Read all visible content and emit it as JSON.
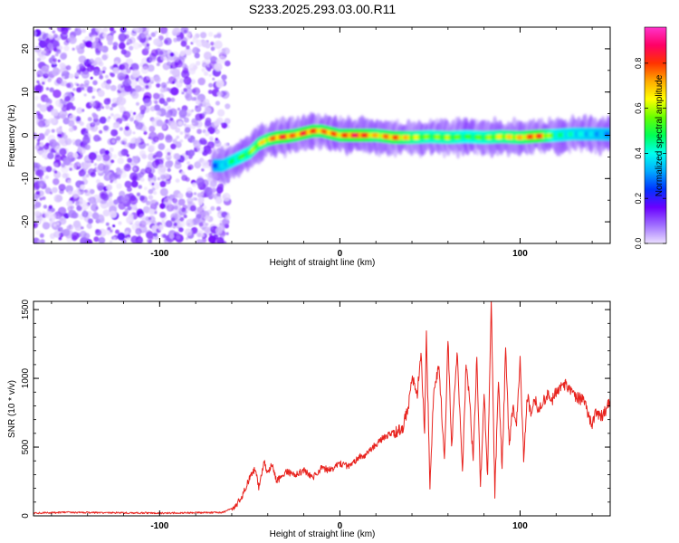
{
  "figure_title": "S233.2025.293.03.00.R11",
  "chart_data": [
    {
      "type": "heatmap",
      "title": "S233.2025.293.03.00.R11",
      "xlabel": "Height of straight line (km)",
      "ylabel": "Frequency (Hz)",
      "xlim": [
        -170,
        150
      ],
      "ylim": [
        -25,
        25
      ],
      "xticks": [
        -100,
        0,
        100
      ],
      "xtick_labels": [
        "-100",
        "0",
        "100"
      ],
      "yticks": [
        -20,
        -10,
        0,
        10,
        20
      ],
      "ytick_labels": [
        "-20",
        "-10",
        "0",
        "10",
        "20"
      ],
      "noise_region_x": [
        -170,
        -62
      ],
      "signal_onset_km": -70,
      "ridge": {
        "x": [
          -70,
          -65,
          -60,
          -55,
          -50,
          -45,
          -40,
          -35,
          -30,
          -25,
          -20,
          -15,
          -10,
          -5,
          0,
          10,
          20,
          30,
          40,
          50,
          60,
          70,
          80,
          90,
          100,
          110,
          120,
          130,
          140,
          150
        ],
        "freq": [
          -7,
          -7,
          -6,
          -5,
          -4,
          -2,
          -1,
          -0.5,
          -0.3,
          0,
          0.5,
          1,
          1,
          0.5,
          0,
          0,
          0,
          -0.5,
          -0.5,
          -0.3,
          -0.5,
          -0.3,
          -0.5,
          -0.3,
          -0.5,
          -0.2,
          0,
          0.3,
          0.3,
          0.2
        ],
        "amplitude": [
          0.3,
          0.4,
          0.5,
          0.55,
          0.6,
          0.7,
          0.75,
          0.85,
          0.9,
          0.8,
          0.9,
          0.85,
          0.8,
          0.85,
          0.8,
          0.95,
          0.75,
          0.85,
          0.7,
          0.6,
          0.65,
          0.55,
          0.6,
          0.7,
          0.75,
          0.9,
          0.5,
          0.45,
          0.4,
          0.35
        ]
      },
      "colorbar": {
        "label": "Normalized spectral amplitude",
        "range": [
          0,
          0.96
        ],
        "ticks": [
          0.0,
          0.2,
          0.4,
          0.6,
          0.8
        ],
        "tick_labels": [
          "0.0",
          "0.2",
          "0.4",
          "0.6",
          "0.8"
        ],
        "colors": [
          "#ece0ff",
          "#a070ff",
          "#6a00ff",
          "#0033ff",
          "#00aaff",
          "#00ffee",
          "#00ff55",
          "#66ff00",
          "#ffff00",
          "#ffaa00",
          "#ff3300",
          "#ff0066",
          "#ff33cc"
        ]
      }
    },
    {
      "type": "line",
      "xlabel": "Height of straight line (km)",
      "ylabel": "SNR (10 * v/v)",
      "xlim": [
        -170,
        150
      ],
      "ylim": [
        0,
        1560
      ],
      "xticks": [
        -100,
        0,
        100
      ],
      "xtick_labels": [
        "-100",
        "0",
        "100"
      ],
      "yticks": [
        0,
        500,
        1000,
        1500
      ],
      "ytick_labels": [
        "0",
        "500",
        "1000",
        "1500"
      ],
      "series": [
        {
          "name": "SNR",
          "color": "#e8231e",
          "x": [
            -170,
            -150,
            -120,
            -100,
            -80,
            -65,
            -60,
            -55,
            -50,
            -47,
            -45,
            -42,
            -40,
            -38,
            -35,
            -30,
            -25,
            -20,
            -15,
            -10,
            -5,
            0,
            5,
            10,
            15,
            20,
            25,
            30,
            35,
            38,
            40,
            43,
            45,
            47,
            48,
            50,
            52,
            55,
            58,
            60,
            62,
            65,
            68,
            70,
            72,
            74,
            76,
            78,
            80,
            82,
            84,
            86,
            88,
            90,
            92,
            94,
            96,
            98,
            100,
            102,
            104,
            106,
            108,
            110,
            112,
            114,
            116,
            118,
            120,
            122,
            124,
            126,
            128,
            130,
            132,
            134,
            136,
            138,
            140,
            142,
            144,
            146,
            148,
            150
          ],
          "y": [
            20,
            25,
            22,
            20,
            22,
            25,
            50,
            120,
            280,
            350,
            200,
            400,
            300,
            380,
            250,
            320,
            300,
            330,
            280,
            350,
            330,
            380,
            360,
            420,
            450,
            520,
            580,
            600,
            650,
            800,
            1000,
            900,
            1200,
            600,
            1350,
            200,
            900,
            1100,
            400,
            1300,
            500,
            1200,
            300,
            1100,
            850,
            400,
            1150,
            200,
            900,
            300,
            1560,
            150,
            1000,
            350,
            1200,
            500,
            800,
            650,
            1150,
            400,
            880,
            750,
            850,
            780,
            820,
            860,
            880,
            840,
            900,
            920,
            960,
            950,
            900,
            880,
            860,
            850,
            820,
            740,
            650,
            760,
            720,
            740,
            780,
            850
          ]
        }
      ]
    }
  ]
}
